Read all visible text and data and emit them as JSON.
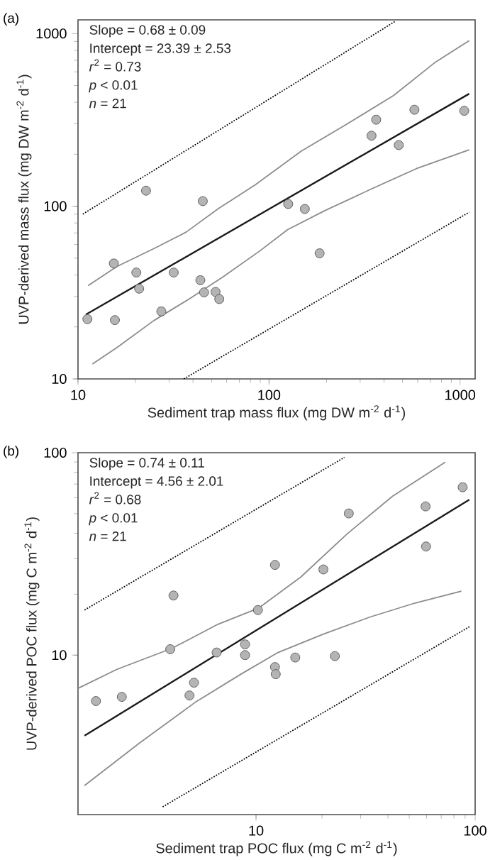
{
  "chart_data": [
    {
      "type": "scatter",
      "title": "(a)",
      "xlabel": "Sediment trap mass flux (mg DW m$^{-2}$ d$^{-1}$)",
      "ylabel": "UVP-derived mass flux (mg DW m$^{-2}$ d$^{-1}$)",
      "annotations": [
        "Slope = 0.68 ± 0.09",
        "Intercept = 23.39 ± 2.53",
        "*r*$^{2}$ = 0.73",
        "*p* < 0.01",
        "*n* = 21"
      ],
      "log": "xy",
      "xlim": [
        10,
        1200
      ],
      "ylim": [
        10,
        1200
      ],
      "xticks": [
        10,
        100,
        1000
      ],
      "yticks": [
        10,
        100,
        1000
      ],
      "series": [
        {
          "type": "line",
          "color": "#8c8c8c",
          "marker": "none",
          "line_style": "solid",
          "x": [
            11.3,
            16.0,
            25.0,
            36.8,
            54.3,
            84.7,
            147,
            257,
            448,
            737,
            1117
          ],
          "values": [
            34.7,
            44.8,
            56.9,
            70.8,
            96.8,
            133,
            208,
            300,
            437,
            678,
            910
          ]
        },
        {
          "type": "line",
          "color": "#8c8c8c",
          "marker": "none",
          "line_style": "solid",
          "x": [
            11.9,
            16.0,
            25.0,
            38.9,
            57.4,
            89.5,
            125,
            195,
            339,
            590,
            1117
          ],
          "values": [
            12.2,
            15.2,
            21.8,
            29.4,
            39.0,
            55.1,
            73.1,
            94.0,
            125,
            165,
            212
          ]
        },
        {
          "type": "line",
          "color": "#000000",
          "marker": "none",
          "line_style": "dotted",
          "x": [
            10.6,
            460
          ],
          "values": [
            90,
            1180
          ]
        },
        {
          "type": "line",
          "color": "#000000",
          "marker": "none",
          "line_style": "dotted",
          "x": [
            35.8,
            1117
          ],
          "values": [
            10,
            92.3
          ]
        },
        {
          "type": "line",
          "color": "#1a1a1a",
          "marker": "none",
          "line_style": "solid",
          "x": [
            11.0,
            1117
          ],
          "values": [
            23.6,
            448
          ]
        },
        {
          "marker": "circle",
          "color": "#b4b4b4",
          "x": [
            11.2,
            15.4,
            15.6,
            20.2,
            20.9,
            22.7,
            27.3,
            31.7,
            43.7,
            45,
            45.7,
            52.5,
            54.9,
            126,
            154,
            184,
            344,
            364,
            478,
            577,
            1052
          ],
          "values": [
            22.2,
            46.6,
            21.9,
            41.3,
            33.3,
            123,
            24.6,
            41.3,
            37.3,
            107,
            31.7,
            31.9,
            29.0,
            103,
            96.4,
            53.4,
            256,
            317,
            226,
            362,
            357
          ]
        }
      ]
    },
    {
      "type": "scatter",
      "title": "(b)",
      "xlabel": "Sediment trap POC flux (mg C m$^{-2}$ d$^{-1}$)",
      "ylabel": "UVP-derived POC flux (mg C m$^{-2}$ d$^{-1}$)",
      "annotations": [
        "Slope = 0.74 ± 0.11",
        "Intercept = 4.56 ± 2.01",
        "*r*$^{2}$ = 0.68",
        "*p* < 0.01",
        "*n* = 21"
      ],
      "log": "xy",
      "xlim": [
        1.54,
        100
      ],
      "ylim": [
        1.63,
        100
      ],
      "xticks": [
        10,
        100
      ],
      "yticks": [
        10,
        100
      ],
      "series": [
        {
          "type": "line",
          "color": "#8c8c8c",
          "marker": "none",
          "line_style": "solid",
          "x": [
            1.54,
            2.32,
            4.13,
            6.7,
            10.3,
            16.0,
            25.9,
            41.9,
            73.1
          ],
          "values": [
            6.85,
            8.51,
            10.8,
            14.2,
            17.1,
            24.3,
            39.5,
            60.9,
            89.8
          ]
        },
        {
          "type": "line",
          "color": "#8c8c8c",
          "marker": "none",
          "line_style": "solid",
          "x": [
            1.65,
            2.95,
            5.26,
            8.53,
            12.6,
            20.3,
            33.0,
            53.3,
            86.5
          ],
          "values": [
            2.27,
            3.69,
            5.83,
            8.05,
            10.3,
            12.7,
            15.4,
            18.1,
            20.7
          ]
        },
        {
          "type": "line",
          "color": "#000000",
          "marker": "none",
          "line_style": "dotted",
          "x": [
            1.65,
            25.3
          ],
          "values": [
            16.7,
            94.8
          ]
        },
        {
          "type": "line",
          "color": "#000000",
          "marker": "none",
          "line_style": "dotted",
          "x": [
            3.75,
            94.0
          ],
          "values": [
            1.78,
            13.8
          ]
        },
        {
          "type": "line",
          "color": "#1a1a1a",
          "marker": "none",
          "line_style": "solid",
          "x": [
            1.65,
            94.0
          ],
          "values": [
            4.0,
            58.6
          ]
        },
        {
          "marker": "circle",
          "color": "#b4b4b4",
          "x": [
            1.86,
            2.44,
            4.06,
            4.2,
            4.97,
            5.21,
            6.61,
            8.91,
            8.91,
            10.2,
            12.2,
            12.2,
            12.3,
            15.1,
            20.3,
            22.9,
            26.5,
            59.4,
            59.7,
            87.7
          ],
          "values": [
            5.93,
            6.22,
            10.7,
            19.7,
            6.32,
            7.31,
            10.3,
            11.3,
            10.0,
            16.7,
            27.9,
            8.73,
            8.05,
            9.73,
            26.5,
            9.89,
            50.1,
            54.3,
            34.4,
            67.5
          ]
        }
      ]
    }
  ]
}
